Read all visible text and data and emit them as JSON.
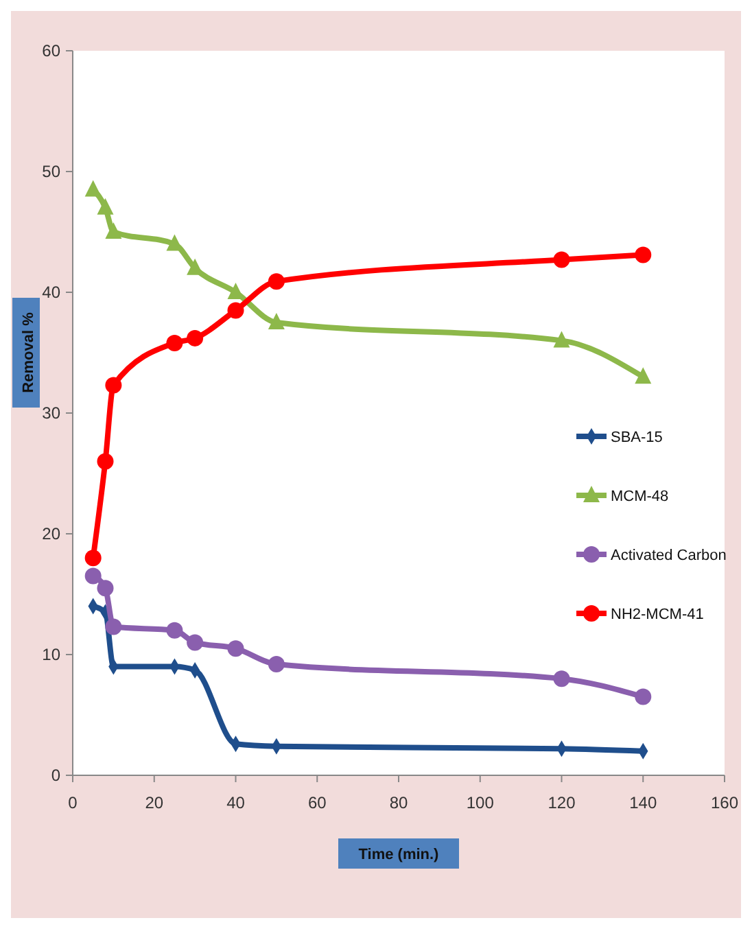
{
  "chart_data": {
    "type": "line",
    "xlabel": "Time (min.)",
    "ylabel": "Removal %",
    "x": [
      5,
      8,
      10,
      25,
      30,
      40,
      50,
      120,
      140
    ],
    "series": [
      {
        "name": "SBA-15",
        "color": "#1f4e8c",
        "marker": "diamond",
        "values": [
          14,
          13.5,
          9,
          9,
          8.7,
          2.6,
          2.4,
          2.2,
          2.0
        ]
      },
      {
        "name": "MCM-48",
        "color": "#8db84a",
        "marker": "triangle",
        "values": [
          48.5,
          47,
          45,
          44,
          42,
          40,
          37.5,
          36,
          33
        ]
      },
      {
        "name": "Activated Carbon",
        "color": "#8a5fae",
        "marker": "circle",
        "values": [
          16.5,
          15.5,
          12.3,
          12,
          11,
          10.5,
          9.2,
          8,
          6.5
        ]
      },
      {
        "name": "NH2-MCM-41",
        "color": "#ff0000",
        "marker": "circle",
        "values": [
          18,
          26,
          32.3,
          35.8,
          36.2,
          38.5,
          40.9,
          42.7,
          43.1
        ]
      }
    ],
    "xlim": [
      0,
      160
    ],
    "xticks": [
      0,
      20,
      40,
      60,
      80,
      100,
      120,
      140,
      160
    ],
    "ylim": [
      0,
      60
    ],
    "yticks": [
      0,
      10,
      20,
      30,
      40,
      50,
      60
    ],
    "grid": false,
    "legend": "right",
    "line_style": "solid"
  }
}
